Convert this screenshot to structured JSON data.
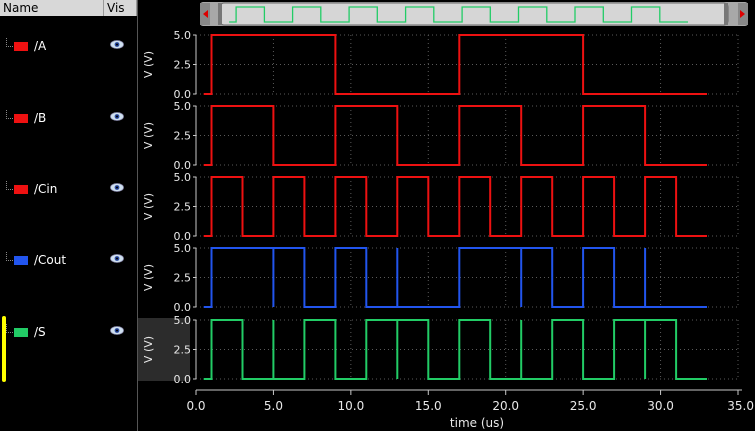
{
  "header": {
    "name_col": "Name",
    "vis_col": "Vis"
  },
  "signals": [
    {
      "label": "/A",
      "color": "#ee1111"
    },
    {
      "label": "/B",
      "color": "#ee1111"
    },
    {
      "label": "/Cin",
      "color": "#ee1111"
    },
    {
      "label": "/Cout",
      "color": "#2255ee"
    },
    {
      "label": "/S",
      "color": "#22cc66"
    }
  ],
  "icons": {
    "visibility": "eye-icon",
    "scroll_left": "arrow-left-icon",
    "scroll_right": "arrow-right-icon"
  },
  "selected_signal": "/S",
  "chart_data": {
    "type": "line",
    "xlabel": "time (us)",
    "xlim": [
      0,
      35
    ],
    "x_ticks": [
      "0.0",
      "5.0",
      "10.0",
      "15.0",
      "20.0",
      "25.0",
      "30.0",
      "35.0"
    ],
    "x_tick_values": [
      0,
      5,
      10,
      15,
      20,
      25,
      30,
      35
    ],
    "ylabel": "V (V)",
    "ylim": [
      0,
      5
    ],
    "y_ticks": [
      "0.0",
      "2.5",
      "5.0"
    ],
    "y_tick_values": [
      0,
      2.5,
      5
    ],
    "grid": true,
    "panels": [
      {
        "name": "/A",
        "color": "#ee1111",
        "x": [
          0.5,
          1,
          1,
          9,
          9,
          17,
          17,
          25,
          25,
          33
        ],
        "y": [
          0,
          0,
          5,
          5,
          0,
          0,
          5,
          5,
          0,
          0
        ]
      },
      {
        "name": "/B",
        "color": "#ee1111",
        "x": [
          0.5,
          1,
          1,
          5,
          5,
          9,
          9,
          13,
          13,
          17,
          17,
          21,
          21,
          25,
          25,
          29,
          29,
          33
        ],
        "y": [
          0,
          0,
          5,
          5,
          0,
          0,
          5,
          5,
          0,
          0,
          5,
          5,
          0,
          0,
          5,
          5,
          0,
          0
        ]
      },
      {
        "name": "/Cin",
        "color": "#ee1111",
        "x": [
          0.5,
          1,
          1,
          3,
          3,
          5,
          5,
          7,
          7,
          9,
          9,
          11,
          11,
          13,
          13,
          15,
          15,
          17,
          17,
          19,
          19,
          21,
          21,
          23,
          23,
          25,
          25,
          27,
          27,
          29,
          29,
          31,
          31,
          33
        ],
        "y": [
          0,
          0,
          5,
          5,
          0,
          0,
          5,
          5,
          0,
          0,
          5,
          5,
          0,
          0,
          5,
          5,
          0,
          0,
          5,
          5,
          0,
          0,
          5,
          5,
          0,
          0,
          5,
          5,
          0,
          0,
          5,
          5,
          0,
          0
        ]
      },
      {
        "name": "/Cout",
        "color": "#2255ee",
        "x": [
          0.5,
          1,
          1,
          5,
          5,
          5,
          5,
          7,
          7,
          9,
          9,
          11,
          11,
          13,
          13,
          13,
          13,
          17,
          17,
          21,
          21,
          21,
          21,
          23,
          23,
          25,
          25,
          27,
          27,
          29,
          29,
          29,
          29,
          33
        ],
        "y": [
          0,
          0,
          5,
          5,
          0,
          5,
          5,
          5,
          0,
          0,
          5,
          5,
          0,
          0,
          5,
          0,
          0,
          0,
          5,
          5,
          0,
          5,
          5,
          5,
          0,
          0,
          5,
          5,
          0,
          0,
          5,
          0,
          0,
          0
        ]
      },
      {
        "name": "/S",
        "color": "#22cc66",
        "x": [
          0.5,
          1,
          1,
          3,
          3,
          5,
          5,
          5,
          5,
          7,
          7,
          9,
          9,
          9,
          9,
          11,
          11,
          13,
          13,
          13,
          13,
          15,
          15,
          17,
          17,
          19,
          19,
          21,
          21,
          21,
          21,
          23,
          23,
          25,
          25,
          27,
          27,
          29,
          29,
          29,
          29,
          31,
          31,
          33
        ],
        "y": [
          0,
          0,
          5,
          5,
          0,
          0,
          5,
          0,
          0,
          0,
          5,
          5,
          0,
          5,
          0,
          0,
          5,
          5,
          0,
          5,
          5,
          5,
          0,
          0,
          5,
          5,
          0,
          0,
          5,
          0,
          0,
          0,
          5,
          5,
          0,
          0,
          5,
          5,
          0,
          5,
          5,
          5,
          0,
          0
        ]
      }
    ],
    "overview": {
      "color": "#22cc66",
      "x": [
        0.5,
        1,
        1,
        3,
        3,
        5,
        5,
        7,
        7,
        9,
        9,
        11,
        11,
        13,
        13,
        15,
        15,
        17,
        17,
        19,
        19,
        21,
        21,
        23,
        23,
        25,
        25,
        27,
        27,
        29,
        29,
        31,
        31,
        33
      ],
      "y": [
        0,
        0,
        5,
        5,
        0,
        0,
        5,
        5,
        0,
        0,
        5,
        5,
        0,
        0,
        5,
        5,
        0,
        0,
        5,
        5,
        0,
        0,
        5,
        5,
        0,
        0,
        5,
        5,
        0,
        0,
        5,
        5,
        0,
        0
      ]
    }
  }
}
